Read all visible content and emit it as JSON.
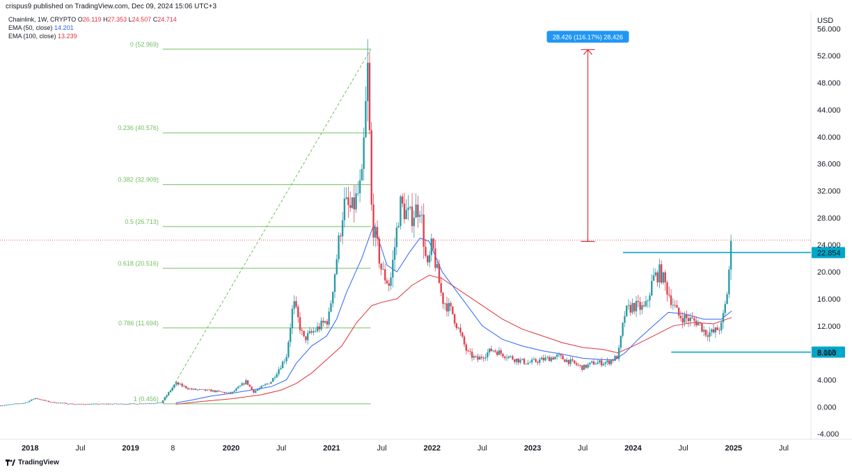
{
  "header": {
    "text": "crispus9 published on TradingView.com, Dec 09, 2024 15:06 UTC+3"
  },
  "legend": {
    "symbol_line": "Chainlink, 1W, CRYPTO",
    "ohlc": {
      "o_label": "O",
      "o": "26.119",
      "h_label": "H",
      "h": "27.353",
      "l_label": "L",
      "l": "24.507",
      "c_label": "C",
      "c": "24.714"
    },
    "ema50": {
      "label": "EMA (50, close)",
      "value": "14.201",
      "color": "#2962ff"
    },
    "ema100": {
      "label": "EMA (100, close)",
      "value": "13.239",
      "color": "#e0303a"
    }
  },
  "footer": {
    "brand": "TradingView"
  },
  "colors": {
    "up": "#2a9aa8",
    "down": "#e04050",
    "fib": "#6fbf5f",
    "level": "#00a7c8",
    "measure": "#e0303a",
    "measure_box": "#2196f3"
  },
  "chart_data": {
    "type": "candlestick",
    "currency": "USD",
    "y_ticks": [
      "56.000",
      "52.000",
      "48.000",
      "44.000",
      "40.000",
      "36.000",
      "32.000",
      "28.000",
      "24.000",
      "20.000",
      "16.000",
      "12.000",
      "8.000",
      "4.000",
      "0.000",
      "-4.000"
    ],
    "y_tick_values": [
      56,
      52,
      48,
      44,
      40,
      36,
      32,
      28,
      24,
      20,
      16,
      12,
      8,
      4,
      0,
      -4
    ],
    "ylim": [
      -4.8,
      58.4
    ],
    "x_ticks": [
      {
        "label": "2018",
        "bold": true,
        "t": 2018.0
      },
      {
        "label": "Jul",
        "bold": false,
        "t": 2018.5
      },
      {
        "label": "2019",
        "bold": true,
        "t": 2019.0
      },
      {
        "label": "8",
        "bold": false,
        "t": 2019.42
      },
      {
        "label": "2020",
        "bold": true,
        "t": 2020.0
      },
      {
        "label": "Jul",
        "bold": false,
        "t": 2020.5
      },
      {
        "label": "2021",
        "bold": true,
        "t": 2021.0
      },
      {
        "label": "Jul",
        "bold": false,
        "t": 2021.5
      },
      {
        "label": "2022",
        "bold": true,
        "t": 2022.0
      },
      {
        "label": "Jul",
        "bold": false,
        "t": 2022.5
      },
      {
        "label": "2023",
        "bold": true,
        "t": 2023.0
      },
      {
        "label": "Jul",
        "bold": false,
        "t": 2023.5
      },
      {
        "label": "2024",
        "bold": true,
        "t": 2024.0
      },
      {
        "label": "Jul",
        "bold": false,
        "t": 2024.5
      },
      {
        "label": "2025",
        "bold": true,
        "t": 2025.0
      },
      {
        "label": "Jul",
        "bold": false,
        "t": 2025.5
      }
    ],
    "xlim": [
      2017.7,
      2025.77
    ],
    "price_points": [
      [
        2017.7,
        0.2
      ],
      [
        2017.95,
        0.6
      ],
      [
        2018.05,
        1.3
      ],
      [
        2018.2,
        0.7
      ],
      [
        2018.45,
        0.4
      ],
      [
        2018.8,
        0.45
      ],
      [
        2019.0,
        0.45
      ],
      [
        2019.3,
        0.6
      ],
      [
        2019.45,
        3.5
      ],
      [
        2019.6,
        2.6
      ],
      [
        2019.8,
        2.4
      ],
      [
        2020.0,
        2.0
      ],
      [
        2020.15,
        3.8
      ],
      [
        2020.22,
        2.2
      ],
      [
        2020.4,
        3.8
      ],
      [
        2020.55,
        7.5
      ],
      [
        2020.62,
        15.5
      ],
      [
        2020.72,
        10.0
      ],
      [
        2020.85,
        11.5
      ],
      [
        2020.97,
        13.0
      ],
      [
        2021.05,
        22.0
      ],
      [
        2021.12,
        30.0
      ],
      [
        2021.2,
        29.0
      ],
      [
        2021.3,
        33.0
      ],
      [
        2021.36,
        50.0
      ],
      [
        2021.4,
        28.0
      ],
      [
        2021.5,
        20.0
      ],
      [
        2021.58,
        18.0
      ],
      [
        2021.68,
        30.0
      ],
      [
        2021.78,
        28.0
      ],
      [
        2021.88,
        30.0
      ],
      [
        2021.95,
        20.0
      ],
      [
        2022.0,
        24.0
      ],
      [
        2022.1,
        16.0
      ],
      [
        2022.2,
        14.0
      ],
      [
        2022.35,
        8.0
      ],
      [
        2022.45,
        7.0
      ],
      [
        2022.6,
        8.5
      ],
      [
        2022.8,
        7.2
      ],
      [
        2022.95,
        6.5
      ],
      [
        2023.1,
        7.0
      ],
      [
        2023.25,
        7.5
      ],
      [
        2023.4,
        6.5
      ],
      [
        2023.5,
        5.8
      ],
      [
        2023.6,
        6.5
      ],
      [
        2023.75,
        6.6
      ],
      [
        2023.85,
        7.5
      ],
      [
        2023.92,
        14.0
      ],
      [
        2024.0,
        15.0
      ],
      [
        2024.12,
        14.5
      ],
      [
        2024.2,
        19.0
      ],
      [
        2024.27,
        20.0
      ],
      [
        2024.35,
        17.0
      ],
      [
        2024.45,
        13.5
      ],
      [
        2024.55,
        13.0
      ],
      [
        2024.65,
        12.5
      ],
      [
        2024.72,
        11.0
      ],
      [
        2024.8,
        11.0
      ],
      [
        2024.88,
        12.0
      ],
      [
        2024.93,
        16.0
      ],
      [
        2024.98,
        24.7
      ]
    ],
    "ema50_points": [
      [
        2019.45,
        0.6
      ],
      [
        2019.6,
        1.0
      ],
      [
        2019.8,
        1.6
      ],
      [
        2020.0,
        2.0
      ],
      [
        2020.2,
        2.5
      ],
      [
        2020.4,
        3.0
      ],
      [
        2020.55,
        4.0
      ],
      [
        2020.65,
        6.5
      ],
      [
        2020.8,
        9.0
      ],
      [
        2020.95,
        10.5
      ],
      [
        2021.05,
        13.0
      ],
      [
        2021.15,
        17.0
      ],
      [
        2021.3,
        22.0
      ],
      [
        2021.42,
        27.0
      ],
      [
        2021.55,
        21.0
      ],
      [
        2021.65,
        20.0
      ],
      [
        2021.78,
        23.0
      ],
      [
        2021.88,
        25.0
      ],
      [
        2021.97,
        24.5
      ],
      [
        2022.1,
        20.0
      ],
      [
        2022.3,
        16.0
      ],
      [
        2022.5,
        12.0
      ],
      [
        2022.7,
        10.0
      ],
      [
        2022.9,
        9.0
      ],
      [
        2023.1,
        8.3
      ],
      [
        2023.3,
        7.8
      ],
      [
        2023.5,
        7.2
      ],
      [
        2023.7,
        7.0
      ],
      [
        2023.82,
        7.0
      ],
      [
        2023.92,
        8.0
      ],
      [
        2024.05,
        10.0
      ],
      [
        2024.2,
        12.0
      ],
      [
        2024.35,
        14.0
      ],
      [
        2024.5,
        13.8
      ],
      [
        2024.7,
        13.0
      ],
      [
        2024.88,
        13.0
      ],
      [
        2024.98,
        14.2
      ]
    ],
    "ema100_points": [
      [
        2019.45,
        0.4
      ],
      [
        2019.7,
        0.8
      ],
      [
        2020.0,
        1.2
      ],
      [
        2020.3,
        1.8
      ],
      [
        2020.5,
        2.5
      ],
      [
        2020.65,
        3.5
      ],
      [
        2020.8,
        5.0
      ],
      [
        2020.95,
        7.0
      ],
      [
        2021.1,
        9.0
      ],
      [
        2021.25,
        12.5
      ],
      [
        2021.4,
        15.0
      ],
      [
        2021.5,
        15.5
      ],
      [
        2021.65,
        16.0
      ],
      [
        2021.8,
        18.0
      ],
      [
        2021.97,
        19.5
      ],
      [
        2022.1,
        19.0
      ],
      [
        2022.3,
        17.0
      ],
      [
        2022.5,
        15.0
      ],
      [
        2022.7,
        13.0
      ],
      [
        2022.9,
        11.5
      ],
      [
        2023.1,
        10.5
      ],
      [
        2023.3,
        9.5
      ],
      [
        2023.5,
        8.8
      ],
      [
        2023.7,
        8.5
      ],
      [
        2023.85,
        8.0
      ],
      [
        2024.0,
        9.0
      ],
      [
        2024.2,
        10.5
      ],
      [
        2024.4,
        12.0
      ],
      [
        2024.6,
        12.5
      ],
      [
        2024.8,
        12.3
      ],
      [
        2024.98,
        13.24
      ]
    ],
    "fib_levels": [
      {
        "label": "0 (52.969)",
        "value": 52.969
      },
      {
        "label": "0.236 (40.576)",
        "value": 40.576
      },
      {
        "label": "0.382 (32.909)",
        "value": 32.909
      },
      {
        "label": "0.5 (26.713)",
        "value": 26.713
      },
      {
        "label": "0.618 (20.516)",
        "value": 20.516
      },
      {
        "label": "0.786 (11.694)",
        "value": 11.694
      },
      {
        "label": "1 (0.456)",
        "value": 0.456
      }
    ],
    "fib_range_t": [
      2019.32,
      2021.39
    ],
    "fib_trend": [
      [
        2019.32,
        0.456
      ],
      [
        2021.39,
        52.969
      ]
    ],
    "measure": {
      "label": "28.426 (116.17%) 28,426",
      "t": 2023.55,
      "from": 24.5,
      "to": 52.9
    },
    "levels": [
      {
        "label": "22.854",
        "value": 22.854,
        "from_t": 2023.9
      },
      {
        "label": "8.113",
        "value": 8.113,
        "from_t": 2024.38
      }
    ],
    "current_price": 24.714
  }
}
